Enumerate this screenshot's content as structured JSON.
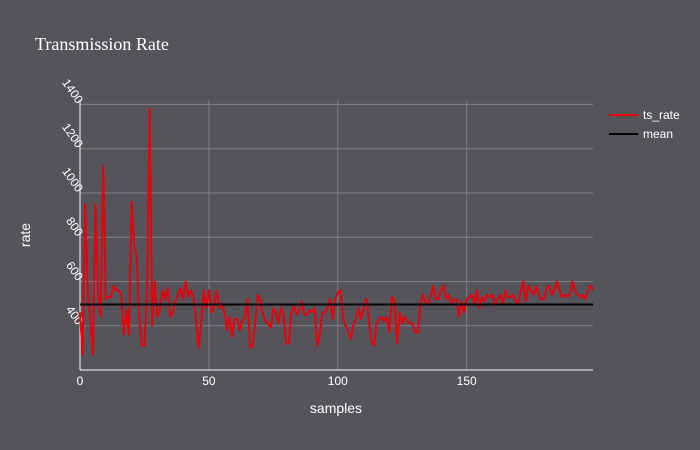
{
  "chart_data": {
    "type": "line",
    "title": "Transmission Rate",
    "xlabel": "samples",
    "ylabel": "rate",
    "xlim": [
      0,
      199
    ],
    "ylim": [
      200,
      1420
    ],
    "x_ticks": [
      0,
      50,
      100,
      150
    ],
    "y_ticks": [
      400,
      600,
      800,
      1000,
      1200,
      1400
    ],
    "grid": true,
    "legend_position": "top-right",
    "series": [
      {
        "name": "ts_rate",
        "color": "#e8000b",
        "x_start": 0,
        "x_step": 1,
        "values": [
          460,
          270,
          950,
          560,
          420,
          270,
          950,
          560,
          440,
          1120,
          520,
          530,
          530,
          580,
          560,
          560,
          540,
          360,
          470,
          360,
          960,
          770,
          710,
          440,
          310,
          310,
          560,
          1380,
          400,
          600,
          440,
          470,
          560,
          520,
          570,
          440,
          460,
          510,
          540,
          570,
          520,
          600,
          530,
          560,
          530,
          430,
          300,
          410,
          560,
          480,
          560,
          460,
          480,
          560,
          480,
          500,
          460,
          380,
          440,
          350,
          430,
          430,
          380,
          420,
          440,
          520,
          300,
          310,
          420,
          540,
          510,
          450,
          420,
          410,
          390,
          480,
          460,
          410,
          480,
          450,
          320,
          320,
          460,
          490,
          450,
          470,
          510,
          450,
          450,
          470,
          460,
          480,
          310,
          360,
          460,
          460,
          480,
          520,
          430,
          520,
          550,
          560,
          440,
          400,
          380,
          340,
          400,
          430,
          480,
          430,
          480,
          520,
          440,
          330,
          310,
          410,
          430,
          440,
          420,
          440,
          370,
          530,
          510,
          320,
          460,
          410,
          440,
          420,
          410,
          410,
          370,
          370,
          480,
          540,
          510,
          500,
          530,
          580,
          520,
          520,
          560,
          580,
          520,
          540,
          500,
          520,
          520,
          440,
          510,
          460,
          520,
          530,
          540,
          500,
          560,
          480,
          530,
          510,
          540,
          530,
          540,
          490,
          520,
          540,
          500,
          560,
          530,
          530,
          540,
          510,
          500,
          560,
          600,
          510,
          580,
          560,
          540,
          580,
          540,
          520,
          520,
          570,
          580,
          540,
          560,
          600,
          560,
          530,
          540,
          530,
          540,
          600,
          560,
          540,
          530,
          540,
          520,
          560,
          580,
          560
        ]
      },
      {
        "name": "mean",
        "color": "#000000",
        "constant": 496
      }
    ]
  },
  "colors": {
    "background": "#55545b",
    "grid": "#7f7f85",
    "axis_line": "#ffffff",
    "text": "#ffffff"
  }
}
